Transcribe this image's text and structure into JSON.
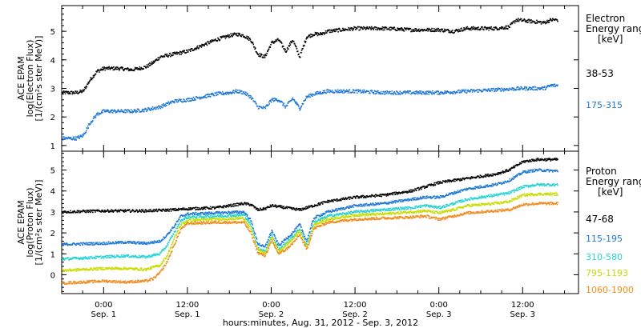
{
  "footer_label": "hours:minutes, Aug. 31, 2012 - Sep.  3, 2012",
  "x_ticks": [
    {
      "x": 0,
      "time": "0:00",
      "date": "Sep. 1"
    },
    {
      "x": 12,
      "time": "12:00",
      "date": "Sep. 1"
    },
    {
      "x": 24,
      "time": "0:00",
      "date": "Sep. 2"
    },
    {
      "x": 36,
      "time": "12:00",
      "date": "Sep. 2"
    },
    {
      "x": 48,
      "time": "0:00",
      "date": "Sep. 3"
    },
    {
      "x": 60,
      "time": "12:00",
      "date": "Sep. 3"
    }
  ],
  "chart_data": [
    {
      "type": "scatter",
      "panel": "top",
      "ylabel_lines": [
        "ACE EPAM",
        "log(Electron Flux)",
        "[1/(cm²s ster MeV)]"
      ],
      "legend_title_lines": [
        "Electron",
        "Energy range",
        "[keV]"
      ],
      "xlim": [
        -6,
        68
      ],
      "ylim": [
        0.8,
        5.9
      ],
      "yticks": [
        1,
        2,
        3,
        4,
        5
      ],
      "series": [
        {
          "name": "38-53",
          "color": "#000000",
          "points": [
            [
              -6,
              2.85
            ],
            [
              -4,
              2.85
            ],
            [
              -3,
              2.9
            ],
            [
              -2,
              3.3
            ],
            [
              -1,
              3.6
            ],
            [
              0,
              3.7
            ],
            [
              2,
              3.7
            ],
            [
              4,
              3.65
            ],
            [
              6,
              3.75
            ],
            [
              7,
              3.9
            ],
            [
              8,
              4.1
            ],
            [
              10,
              4.2
            ],
            [
              12,
              4.3
            ],
            [
              14,
              4.5
            ],
            [
              16,
              4.7
            ],
            [
              18,
              4.85
            ],
            [
              19,
              4.9
            ],
            [
              20,
              4.85
            ],
            [
              21,
              4.7
            ],
            [
              22,
              4.2
            ],
            [
              23,
              4.1
            ],
            [
              24,
              4.6
            ],
            [
              25,
              4.7
            ],
            [
              26,
              4.3
            ],
            [
              27,
              4.7
            ],
            [
              28,
              4.1
            ],
            [
              29,
              4.8
            ],
            [
              30,
              4.9
            ],
            [
              31,
              4.9
            ],
            [
              32,
              5.0
            ],
            [
              34,
              5.05
            ],
            [
              36,
              5.1
            ],
            [
              40,
              5.1
            ],
            [
              44,
              5.05
            ],
            [
              48,
              5.05
            ],
            [
              50,
              5.0
            ],
            [
              52,
              5.1
            ],
            [
              54,
              5.1
            ],
            [
              56,
              5.1
            ],
            [
              58,
              5.15
            ],
            [
              59,
              5.4
            ],
            [
              61,
              5.35
            ],
            [
              63,
              5.3
            ],
            [
              64,
              5.4
            ],
            [
              65,
              5.4
            ]
          ]
        },
        {
          "name": "175-315",
          "color": "#1f78d4",
          "points": [
            [
              -6,
              1.25
            ],
            [
              -4,
              1.25
            ],
            [
              -3,
              1.35
            ],
            [
              -2,
              1.8
            ],
            [
              -1,
              2.1
            ],
            [
              0,
              2.2
            ],
            [
              2,
              2.2
            ],
            [
              4,
              2.2
            ],
            [
              6,
              2.25
            ],
            [
              8,
              2.35
            ],
            [
              10,
              2.55
            ],
            [
              12,
              2.6
            ],
            [
              14,
              2.7
            ],
            [
              16,
              2.8
            ],
            [
              18,
              2.85
            ],
            [
              19,
              2.9
            ],
            [
              20,
              2.85
            ],
            [
              21,
              2.7
            ],
            [
              22,
              2.35
            ],
            [
              23,
              2.3
            ],
            [
              24,
              2.6
            ],
            [
              25,
              2.6
            ],
            [
              26,
              2.35
            ],
            [
              27,
              2.65
            ],
            [
              28,
              2.3
            ],
            [
              29,
              2.7
            ],
            [
              30,
              2.8
            ],
            [
              31,
              2.85
            ],
            [
              32,
              2.9
            ],
            [
              36,
              2.9
            ],
            [
              40,
              2.85
            ],
            [
              44,
              2.85
            ],
            [
              48,
              2.85
            ],
            [
              52,
              2.9
            ],
            [
              56,
              2.95
            ],
            [
              60,
              3.0
            ],
            [
              63,
              3.0
            ],
            [
              64,
              3.1
            ],
            [
              65,
              3.1
            ]
          ]
        }
      ]
    },
    {
      "type": "scatter",
      "panel": "bottom",
      "ylabel_lines": [
        "ACE EPAM",
        "log(Proton Flux)",
        "[1/(cm²s ster MeV)]"
      ],
      "legend_title_lines": [
        "Proton",
        "Energy range",
        "[keV]"
      ],
      "xlim": [
        -6,
        68
      ],
      "ylim": [
        -0.9,
        5.9
      ],
      "yticks": [
        0,
        1,
        2,
        3,
        4,
        5
      ],
      "series": [
        {
          "name": "47-68",
          "color": "#000000",
          "points": [
            [
              -6,
              3.0
            ],
            [
              0,
              3.05
            ],
            [
              6,
              3.05
            ],
            [
              10,
              3.1
            ],
            [
              12,
              3.15
            ],
            [
              16,
              3.2
            ],
            [
              18,
              3.3
            ],
            [
              20,
              3.4
            ],
            [
              21,
              3.35
            ],
            [
              22,
              3.1
            ],
            [
              23,
              3.15
            ],
            [
              24,
              3.3
            ],
            [
              26,
              3.2
            ],
            [
              28,
              3.1
            ],
            [
              30,
              3.3
            ],
            [
              32,
              3.5
            ],
            [
              36,
              3.7
            ],
            [
              40,
              3.8
            ],
            [
              44,
              4.0
            ],
            [
              46,
              4.2
            ],
            [
              48,
              4.4
            ],
            [
              50,
              4.5
            ],
            [
              52,
              4.6
            ],
            [
              54,
              4.7
            ],
            [
              56,
              4.8
            ],
            [
              58,
              5.0
            ],
            [
              59,
              5.2
            ],
            [
              60,
              5.4
            ],
            [
              62,
              5.5
            ],
            [
              65,
              5.5
            ]
          ]
        },
        {
          "name": "115-195",
          "color": "#1f78d4",
          "points": [
            [
              -6,
              1.45
            ],
            [
              0,
              1.5
            ],
            [
              3,
              1.55
            ],
            [
              6,
              1.5
            ],
            [
              8,
              1.6
            ],
            [
              9,
              1.9
            ],
            [
              10,
              2.3
            ],
            [
              11,
              2.8
            ],
            [
              12,
              2.9
            ],
            [
              16,
              2.95
            ],
            [
              20,
              3.0
            ],
            [
              21,
              2.6
            ],
            [
              22,
              1.5
            ],
            [
              23,
              1.3
            ],
            [
              24,
              2.1
            ],
            [
              25,
              1.4
            ],
            [
              26,
              1.7
            ],
            [
              27,
              2.0
            ],
            [
              28,
              2.4
            ],
            [
              29,
              1.6
            ],
            [
              30,
              2.7
            ],
            [
              32,
              3.0
            ],
            [
              36,
              3.3
            ],
            [
              40,
              3.4
            ],
            [
              44,
              3.6
            ],
            [
              46,
              3.7
            ],
            [
              48,
              3.7
            ],
            [
              50,
              3.9
            ],
            [
              52,
              4.1
            ],
            [
              54,
              4.2
            ],
            [
              56,
              4.3
            ],
            [
              58,
              4.5
            ],
            [
              60,
              4.9
            ],
            [
              62,
              5.0
            ],
            [
              65,
              4.95
            ]
          ]
        },
        {
          "name": "310-580",
          "color": "#27d3d3",
          "points": [
            [
              -6,
              0.75
            ],
            [
              0,
              0.85
            ],
            [
              3,
              0.9
            ],
            [
              6,
              0.85
            ],
            [
              8,
              1.0
            ],
            [
              9,
              1.4
            ],
            [
              10,
              2.0
            ],
            [
              11,
              2.6
            ],
            [
              12,
              2.75
            ],
            [
              16,
              2.8
            ],
            [
              20,
              2.85
            ],
            [
              21,
              2.4
            ],
            [
              22,
              1.3
            ],
            [
              23,
              1.1
            ],
            [
              24,
              1.9
            ],
            [
              25,
              1.2
            ],
            [
              26,
              1.5
            ],
            [
              27,
              1.8
            ],
            [
              28,
              2.2
            ],
            [
              29,
              1.4
            ],
            [
              30,
              2.5
            ],
            [
              32,
              2.8
            ],
            [
              36,
              3.0
            ],
            [
              40,
              3.1
            ],
            [
              44,
              3.2
            ],
            [
              46,
              3.3
            ],
            [
              48,
              3.2
            ],
            [
              50,
              3.4
            ],
            [
              52,
              3.6
            ],
            [
              54,
              3.7
            ],
            [
              56,
              3.8
            ],
            [
              58,
              3.9
            ],
            [
              60,
              4.2
            ],
            [
              62,
              4.3
            ],
            [
              65,
              4.3
            ]
          ]
        },
        {
          "name": "795-1193",
          "color": "#c8dc00",
          "points": [
            [
              -6,
              0.2
            ],
            [
              0,
              0.3
            ],
            [
              3,
              0.3
            ],
            [
              6,
              0.25
            ],
            [
              8,
              0.45
            ],
            [
              9,
              0.9
            ],
            [
              10,
              1.7
            ],
            [
              11,
              2.4
            ],
            [
              12,
              2.6
            ],
            [
              16,
              2.65
            ],
            [
              20,
              2.7
            ],
            [
              21,
              2.2
            ],
            [
              22,
              1.2
            ],
            [
              23,
              1.0
            ],
            [
              24,
              1.8
            ],
            [
              25,
              1.1
            ],
            [
              26,
              1.4
            ],
            [
              27,
              1.7
            ],
            [
              28,
              2.1
            ],
            [
              29,
              1.3
            ],
            [
              30,
              2.4
            ],
            [
              32,
              2.65
            ],
            [
              36,
              2.85
            ],
            [
              40,
              2.9
            ],
            [
              44,
              3.0
            ],
            [
              46,
              3.05
            ],
            [
              48,
              2.95
            ],
            [
              50,
              3.1
            ],
            [
              52,
              3.3
            ],
            [
              54,
              3.35
            ],
            [
              56,
              3.4
            ],
            [
              58,
              3.5
            ],
            [
              60,
              3.8
            ],
            [
              62,
              3.85
            ],
            [
              65,
              3.85
            ]
          ]
        },
        {
          "name": "1060-1900",
          "color": "#f08c1e",
          "points": [
            [
              -6,
              -0.4
            ],
            [
              0,
              -0.3
            ],
            [
              3,
              -0.35
            ],
            [
              6,
              -0.3
            ],
            [
              7,
              -0.2
            ],
            [
              8,
              0.1
            ],
            [
              9,
              0.6
            ],
            [
              10,
              1.4
            ],
            [
              11,
              2.2
            ],
            [
              12,
              2.45
            ],
            [
              16,
              2.5
            ],
            [
              20,
              2.5
            ],
            [
              21,
              2.0
            ],
            [
              22,
              1.05
            ],
            [
              23,
              0.9
            ],
            [
              24,
              1.6
            ],
            [
              25,
              1.0
            ],
            [
              26,
              1.2
            ],
            [
              27,
              1.5
            ],
            [
              28,
              1.9
            ],
            [
              29,
              1.2
            ],
            [
              30,
              2.2
            ],
            [
              32,
              2.5
            ],
            [
              36,
              2.65
            ],
            [
              40,
              2.7
            ],
            [
              44,
              2.75
            ],
            [
              46,
              2.8
            ],
            [
              48,
              2.65
            ],
            [
              50,
              2.8
            ],
            [
              52,
              2.95
            ],
            [
              54,
              3.0
            ],
            [
              56,
              3.05
            ],
            [
              58,
              3.1
            ],
            [
              60,
              3.35
            ],
            [
              62,
              3.4
            ],
            [
              65,
              3.4
            ]
          ]
        }
      ]
    }
  ]
}
